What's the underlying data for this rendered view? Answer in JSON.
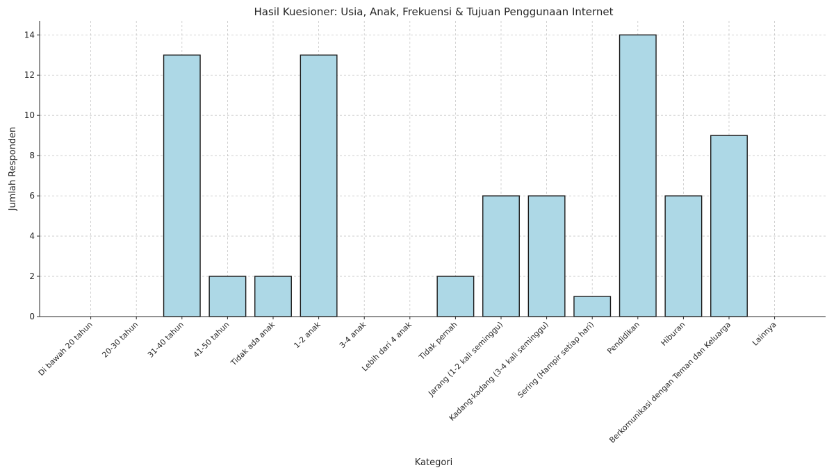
{
  "chart_data": {
    "type": "bar",
    "title": "Hasil Kuesioner: Usia, Anak, Frekuensi & Tujuan Penggunaan Internet",
    "xlabel": "Kategori",
    "ylabel": "Jumlah Responden",
    "categories": [
      "Di bawah 20 tahun",
      "20-30 tahun",
      "31-40 tahun",
      "41-50 tahun",
      "Tidak ada anak",
      "1-2 anak",
      "3-4 anak",
      "Lebih dari 4 anak",
      "Tidak pernah",
      "Jarang (1-2 kali seminggu)",
      "Kadang-kadang (3-4 kali seminggu)",
      "Sering (Hampir setiap hari)",
      "Pendidikan",
      "Hiburan",
      "Berkomunikasi dengan Teman dan Keluarga",
      "Lainnya"
    ],
    "values": [
      0,
      0,
      13,
      2,
      2,
      13,
      0,
      0,
      2,
      6,
      6,
      1,
      14,
      6,
      9,
      0
    ],
    "ylim": [
      0,
      14.7
    ],
    "yticks": [
      0,
      2,
      4,
      6,
      8,
      10,
      12,
      14
    ],
    "grid": true,
    "bar_color": "#add8e6",
    "edge_color": "#1a1a1a"
  }
}
